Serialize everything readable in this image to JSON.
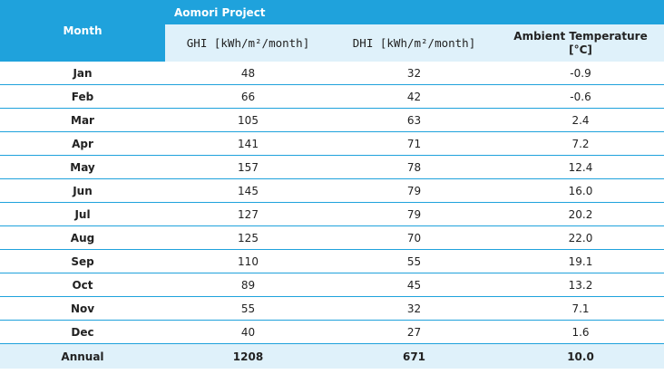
{
  "header": {
    "month_label": "Month",
    "project_title": "Aomori Project",
    "col_ghi": "GHI [kWh/m²/month]",
    "col_dhi": "DHI [kWh/m²/month]",
    "col_temp_line1": "Ambient Temperature",
    "col_temp_line2": "[°C]"
  },
  "rows": [
    {
      "month": "Jan",
      "ghi": "48",
      "dhi": "32",
      "temp": "-0.9"
    },
    {
      "month": "Feb",
      "ghi": "66",
      "dhi": "42",
      "temp": "-0.6"
    },
    {
      "month": "Mar",
      "ghi": "105",
      "dhi": "63",
      "temp": "2.4"
    },
    {
      "month": "Apr",
      "ghi": "141",
      "dhi": "71",
      "temp": "7.2"
    },
    {
      "month": "May",
      "ghi": "157",
      "dhi": "78",
      "temp": "12.4"
    },
    {
      "month": "Jun",
      "ghi": "145",
      "dhi": "79",
      "temp": "16.0"
    },
    {
      "month": "Jul",
      "ghi": "127",
      "dhi": "79",
      "temp": "20.2"
    },
    {
      "month": "Aug",
      "ghi": "125",
      "dhi": "70",
      "temp": "22.0"
    },
    {
      "month": "Sep",
      "ghi": "110",
      "dhi": "55",
      "temp": "19.1"
    },
    {
      "month": "Oct",
      "ghi": "89",
      "dhi": "45",
      "temp": "13.2"
    },
    {
      "month": "Nov",
      "ghi": "55",
      "dhi": "32",
      "temp": "7.1"
    },
    {
      "month": "Dec",
      "ghi": "40",
      "dhi": "27",
      "temp": "1.6"
    }
  ],
  "annual": {
    "month": "Annual",
    "ghi": "1208",
    "dhi": "671",
    "temp": "10.0"
  },
  "colors": {
    "header_blue": "#1fa2dc",
    "subheader_light": "#dff1fa"
  }
}
